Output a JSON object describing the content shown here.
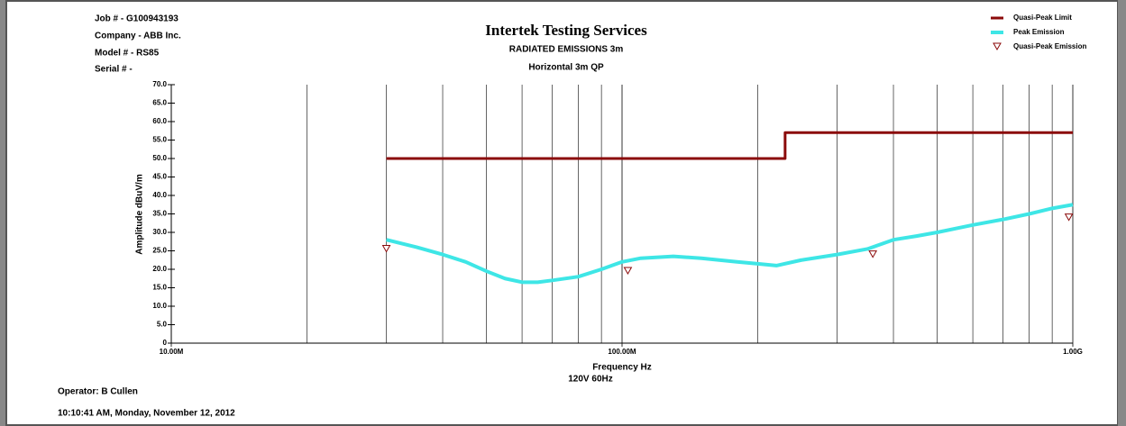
{
  "chart_data": {
    "type": "line",
    "header": [
      "Job # - G100943193",
      "Company - ABB Inc.",
      "Model # - RS85",
      "Serial # -"
    ],
    "title": "Intertek Testing Services",
    "subtitle": "RADIATED EMISSIONS 3m",
    "subtitle2": "Horizontal 3m QP",
    "y_label": "Amplitude dBuV/m",
    "x_label": "Frequency Hz",
    "x_note": "120V 60Hz",
    "footer": [
      "Operator: B Cullen",
      "10:10:41 AM, Monday, November 12, 2012"
    ],
    "x_log": true,
    "xlim": [
      10000000,
      1000000000
    ],
    "xticks": [
      {
        "value": 10000000,
        "label": "10.00M"
      },
      {
        "value": 100000000,
        "label": "100.00M"
      },
      {
        "value": 1000000000,
        "label": "1.00G"
      }
    ],
    "xminor": [
      20000000,
      30000000,
      40000000,
      50000000,
      60000000,
      70000000,
      80000000,
      90000000,
      200000000,
      300000000,
      400000000,
      500000000,
      600000000,
      700000000,
      800000000,
      900000000
    ],
    "ylim": [
      0,
      70
    ],
    "yticks": [
      0,
      {
        "value": 5,
        "label": "5.0"
      },
      {
        "value": 10,
        "label": "10.0"
      },
      {
        "value": 15,
        "label": "15.0"
      },
      {
        "value": 20,
        "label": "20.0"
      },
      {
        "value": 25,
        "label": "25.0"
      },
      {
        "value": 30,
        "label": "30.0"
      },
      {
        "value": 35,
        "label": "35.0"
      },
      {
        "value": 40,
        "label": "40.0"
      },
      {
        "value": 45,
        "label": "45.0"
      },
      {
        "value": 50,
        "label": "50.0"
      },
      {
        "value": 55,
        "label": "55.0"
      },
      {
        "value": 60,
        "label": "60.0"
      },
      {
        "value": 65,
        "label": "65.0"
      },
      {
        "value": 70,
        "label": "70.0"
      }
    ],
    "series": [
      {
        "name": "Quasi-Peak Limit",
        "color": "#8b0a0a",
        "style": "line",
        "width": 3,
        "x": [
          30000000,
          230000000,
          230000000,
          1000000000
        ],
        "values": [
          50,
          50,
          57,
          57
        ]
      },
      {
        "name": "Peak Emission",
        "color": "#3ee6e6",
        "style": "line",
        "width": 4,
        "x": [
          30000000,
          35000000,
          40000000,
          45000000,
          50000000,
          55000000,
          60000000,
          65000000,
          70000000,
          80000000,
          90000000,
          100000000,
          110000000,
          130000000,
          150000000,
          180000000,
          200000000,
          220000000,
          250000000,
          300000000,
          350000000,
          400000000,
          450000000,
          500000000,
          600000000,
          700000000,
          800000000,
          900000000,
          1000000000
        ],
        "values": [
          28,
          26,
          24,
          22,
          19.5,
          17.5,
          16.5,
          16.5,
          17,
          18,
          20,
          22,
          23,
          23.5,
          23,
          22,
          21.5,
          21,
          22.5,
          24,
          25.5,
          28,
          29,
          30,
          32,
          33.5,
          35,
          36.5,
          37.5
        ]
      },
      {
        "name": "Quasi-Peak Emission",
        "color": "#8b0a0a",
        "style": "marker",
        "x": [
          30000000,
          103000000,
          360000000,
          980000000
        ],
        "values": [
          25.5,
          19.5,
          24,
          34
        ]
      }
    ]
  }
}
